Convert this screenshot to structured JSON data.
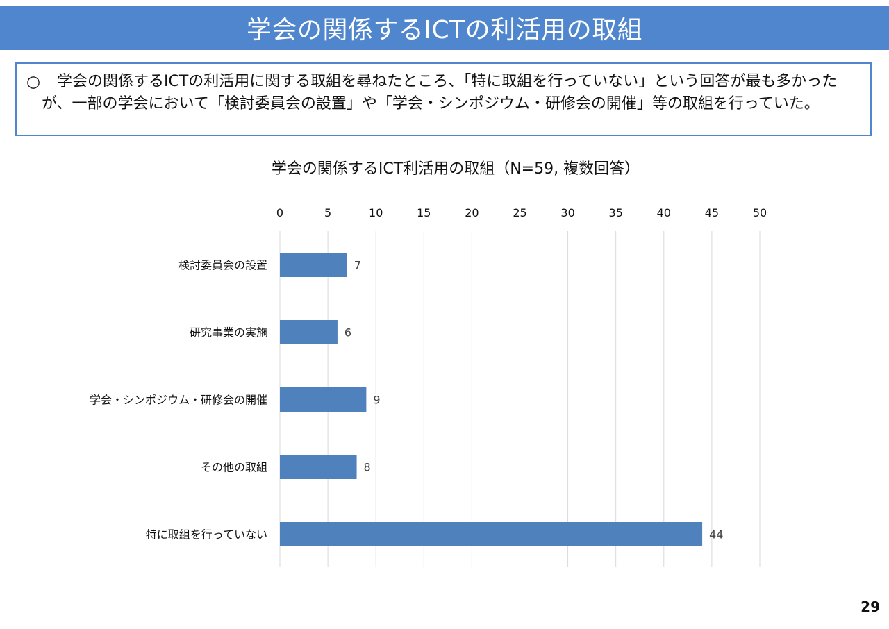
{
  "header": {
    "title": "学会の関係するICTの利活用の取組"
  },
  "summary": {
    "marker": "○",
    "text": "学会の関係するICTの利活用に関する取組を尋ねたところ、「特に取組を行っていない」という回答が最も多かったが、一部の学会において「検討委員会の設置」や「学会・シンポジウム・研修会の開催」等の取組を行っていた。"
  },
  "chart_data": {
    "type": "bar",
    "orientation": "horizontal",
    "title": "学会の関係するICT利活用の取組（N=59, 複数回答）",
    "categories": [
      "検討委員会の設置",
      "研究事業の実施",
      "学会・シンポジウム・研修会の開催",
      "その他の取組",
      "特に取組を行っていない"
    ],
    "values": [
      7,
      6,
      9,
      8,
      44
    ],
    "xlim": [
      0,
      50
    ],
    "xticks": [
      0,
      5,
      10,
      15,
      20,
      25,
      30,
      35,
      40,
      45,
      50
    ],
    "x_axis_position": "top",
    "grid": true,
    "legend": "none",
    "data_labels": true,
    "bar_color": "#4f81bd",
    "grid_color": "#d9d9d9",
    "label_color": "#404040"
  },
  "page": {
    "number": "29"
  }
}
